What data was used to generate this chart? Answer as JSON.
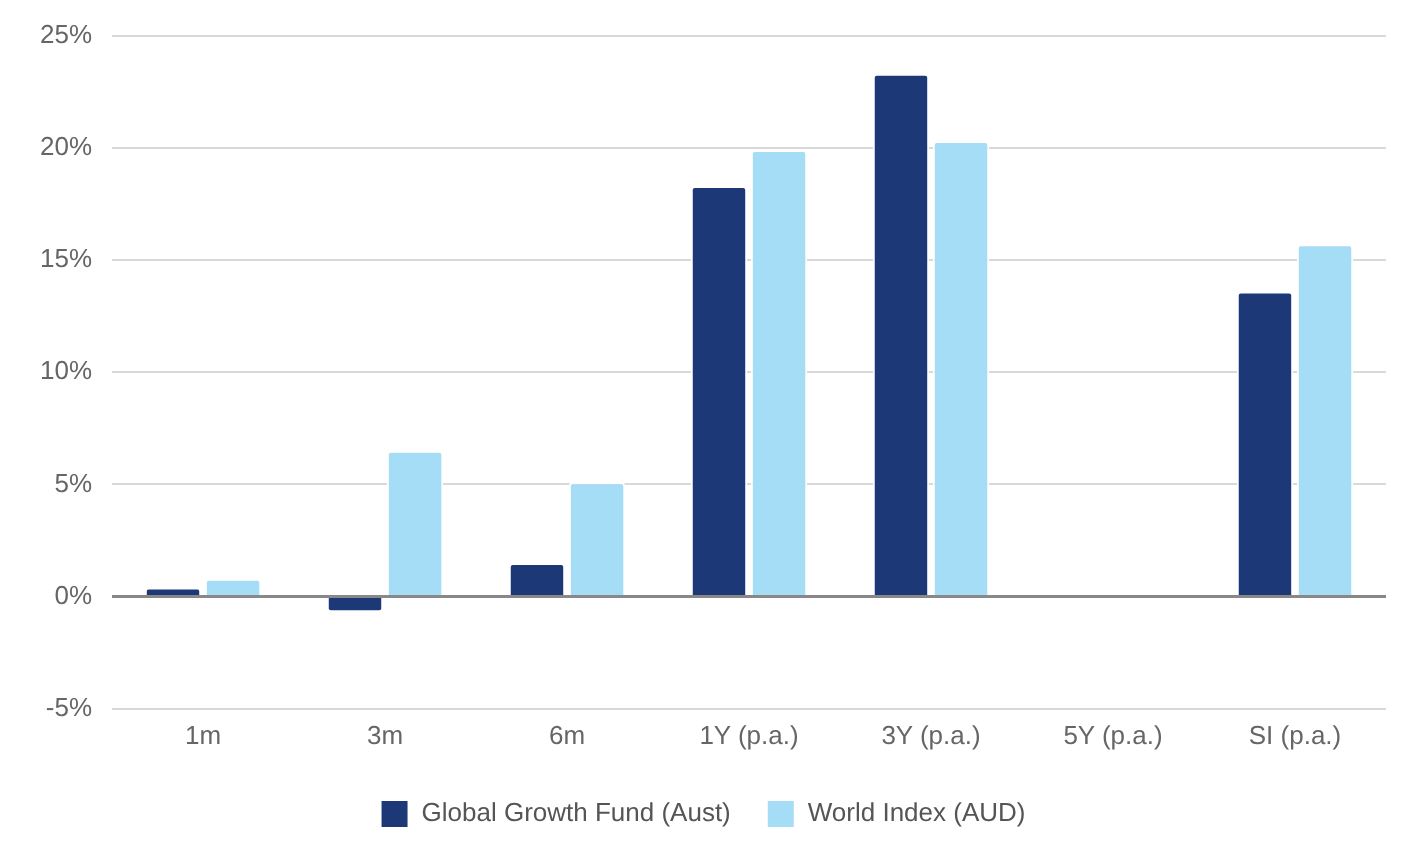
{
  "chart_data": {
    "type": "bar",
    "categories": [
      "1m",
      "3m",
      "6m",
      "1Y (p.a.)",
      "3Y (p.a.)",
      "5Y (p.a.)",
      "SI (p.a.)"
    ],
    "series": [
      {
        "name": "Global Growth Fund (Aust)",
        "color": "#1d3877",
        "values": [
          0.4,
          -0.7,
          1.5,
          18.3,
          23.3,
          null,
          13.6
        ]
      },
      {
        "name": "World Index (AUD)",
        "color": "#a5dcf6",
        "values": [
          0.8,
          6.5,
          5.1,
          19.9,
          20.3,
          null,
          15.7
        ]
      }
    ],
    "ylim": [
      -5,
      25
    ],
    "yticks": [
      {
        "value": -5,
        "label": "-5%"
      },
      {
        "value": 0,
        "label": "0%"
      },
      {
        "value": 5,
        "label": "5%"
      },
      {
        "value": 10,
        "label": "10%"
      },
      {
        "value": 15,
        "label": "15%"
      },
      {
        "value": 20,
        "label": "20%"
      },
      {
        "value": 25,
        "label": "25%"
      }
    ],
    "grid": "y",
    "legend": "bottom"
  }
}
